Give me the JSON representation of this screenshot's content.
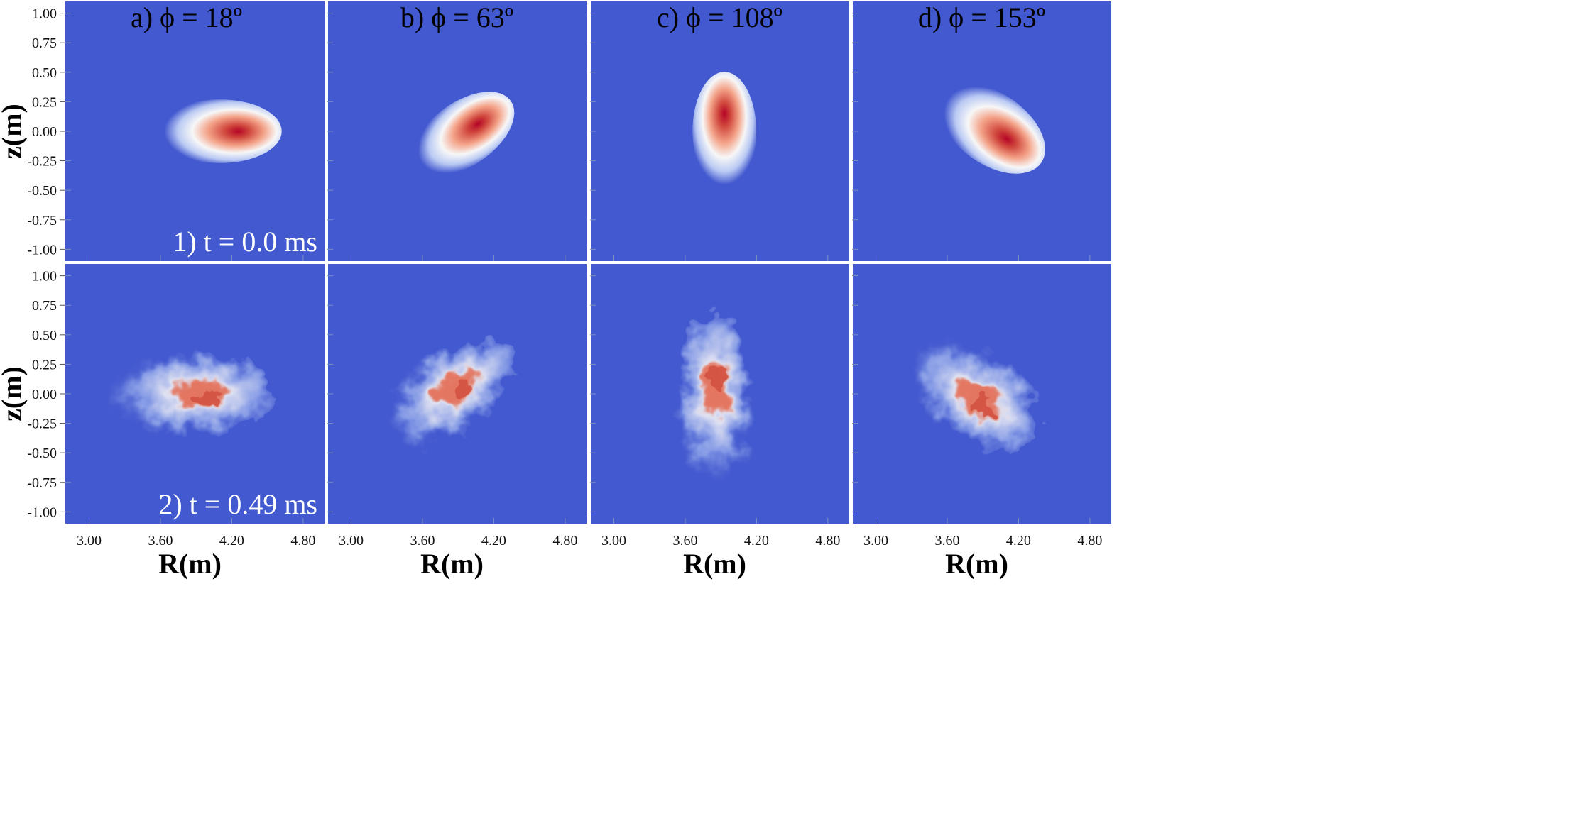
{
  "colors": {
    "background": "#4359cf",
    "separator": "#ffffff",
    "hot": "#b40426",
    "mid": "#f7f7f7",
    "cold": "#4359cf"
  },
  "chart_data": {
    "type": "heatmap",
    "title": "",
    "xlabel": "R(m)",
    "ylabel": "z(m)",
    "xlim": [
      2.8,
      4.98
    ],
    "ylim": [
      -1.1,
      1.1
    ],
    "xticks": [
      "3.00",
      "3.60",
      "4.20",
      "4.80"
    ],
    "yticks": [
      "1.00",
      "0.75",
      "0.50",
      "0.25",
      "0.00",
      "-0.25",
      "-0.50",
      "-0.75",
      "-1.00"
    ],
    "columns": [
      {
        "title": "a) ϕ = 18º",
        "toroidal_angle_deg": 18
      },
      {
        "title": "b) ϕ = 63º",
        "toroidal_angle_deg": 63
      },
      {
        "title": "c) ϕ = 108º",
        "toroidal_angle_deg": 108
      },
      {
        "title": "d) ϕ = 153º",
        "toroidal_angle_deg": 153
      }
    ],
    "rows": [
      {
        "label": "1) t = 0.0 ms",
        "time_ms": 0.0,
        "state": "smooth"
      },
      {
        "label": "2) t = 0.49 ms",
        "time_ms": 0.49,
        "state": "turbulent"
      }
    ],
    "blobs": [
      {
        "row": 0,
        "col": 0,
        "center_R": 4.1,
        "center_z": 0.0,
        "semi_major": 0.52,
        "semi_minor": 0.27,
        "tilt_deg": 0
      },
      {
        "row": 0,
        "col": 1,
        "center_R": 3.95,
        "center_z": -0.02,
        "semi_major": 0.48,
        "semi_minor": 0.27,
        "tilt_deg": -35
      },
      {
        "row": 0,
        "col": 2,
        "center_R": 3.93,
        "center_z": 0.0,
        "semi_major": 0.5,
        "semi_minor": 0.27,
        "tilt_deg": -90
      },
      {
        "row": 0,
        "col": 3,
        "center_R": 3.98,
        "center_z": 0.02,
        "semi_major": 0.5,
        "semi_minor": 0.3,
        "tilt_deg": 35
      },
      {
        "row": 1,
        "col": 0,
        "center_R": 3.85,
        "center_z": 0.0,
        "semi_major": 0.7,
        "semi_minor": 0.34,
        "tilt_deg": 0
      },
      {
        "row": 1,
        "col": 1,
        "center_R": 3.82,
        "center_z": 0.0,
        "semi_major": 0.62,
        "semi_minor": 0.32,
        "tilt_deg": -35
      },
      {
        "row": 1,
        "col": 2,
        "center_R": 3.85,
        "center_z": -0.05,
        "semi_major": 0.72,
        "semi_minor": 0.3,
        "tilt_deg": -90
      },
      {
        "row": 1,
        "col": 3,
        "center_R": 3.82,
        "center_z": 0.0,
        "semi_major": 0.62,
        "semi_minor": 0.36,
        "tilt_deg": 35
      }
    ]
  }
}
